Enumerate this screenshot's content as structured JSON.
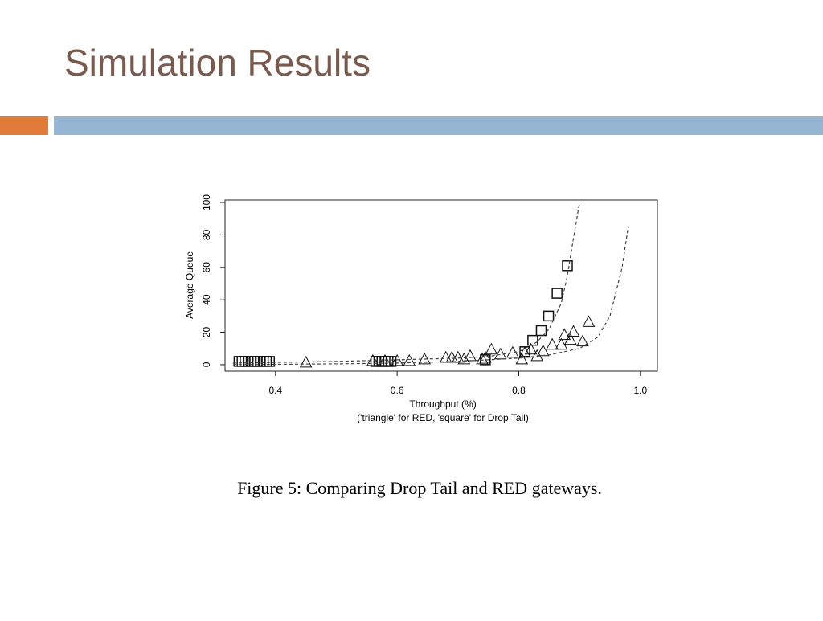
{
  "slide_title": "Simulation Results",
  "caption": "Figure 5: Comparing Drop Tail and RED gateways.",
  "chart_data": {
    "type": "scatter",
    "x_label": "Throughput (%)",
    "subtitle": "('triangle' for RED, 'square' for Drop Tail)",
    "y_label": "Average Queue",
    "xlim": [
      0.317,
      1.028
    ],
    "ylim": [
      -4,
      101.5
    ],
    "xticks": [
      0.4,
      0.6,
      0.8,
      {
        "value": 1,
        "label": "1.0"
      }
    ],
    "yticks": [
      0,
      20,
      40,
      60,
      80,
      100
    ],
    "series": [
      {
        "marker": "square",
        "color": "#111111",
        "x": [
          0.34,
          0.345,
          0.35,
          0.355,
          0.36,
          0.365,
          0.37,
          0.375,
          0.38,
          0.385,
          0.39,
          0.565,
          0.57,
          0.575,
          0.58,
          0.585,
          0.59,
          0.745,
          0.81,
          0.823,
          0.837,
          0.849,
          0.863,
          0.88
        ],
        "values": [
          2,
          2,
          2,
          2,
          2,
          2,
          2,
          2,
          2,
          2,
          2,
          2,
          2,
          2,
          2,
          2,
          2,
          3,
          8,
          15,
          21,
          30,
          44,
          61
        ]
      },
      {
        "marker": "triangle",
        "color": "#111111",
        "x": [
          0.45,
          0.56,
          0.58,
          0.6,
          0.62,
          0.645,
          0.68,
          0.69,
          0.7,
          0.71,
          0.72,
          0.74,
          0.745,
          0.755,
          0.77,
          0.79,
          0.805,
          0.81,
          0.82,
          0.83,
          0.84,
          0.855,
          0.87,
          0.875,
          0.885,
          0.89,
          0.905,
          0.915
        ],
        "values": [
          1,
          2,
          2,
          2,
          2,
          3,
          4,
          4,
          4,
          3,
          5,
          3,
          4,
          9,
          6,
          7,
          3,
          7,
          9,
          5,
          8,
          12,
          12,
          18,
          15,
          20,
          14,
          26
        ]
      },
      {
        "line": "dashed",
        "color": "#444444",
        "x": [
          0.33,
          0.5,
          0.6,
          0.7,
          0.75,
          0.8,
          0.83,
          0.85,
          0.87,
          0.88,
          0.89,
          0.9
        ],
        "values": [
          1,
          2,
          3,
          4,
          5,
          8,
          14,
          22,
          38,
          55,
          78,
          100
        ]
      },
      {
        "line": "dashed",
        "color": "#444444",
        "x": [
          0.33,
          0.5,
          0.6,
          0.7,
          0.8,
          0.85,
          0.9,
          0.93,
          0.95,
          0.97,
          0.98
        ],
        "values": [
          0,
          0.5,
          1,
          2,
          4,
          6,
          10,
          17,
          30,
          60,
          85
        ]
      }
    ]
  }
}
